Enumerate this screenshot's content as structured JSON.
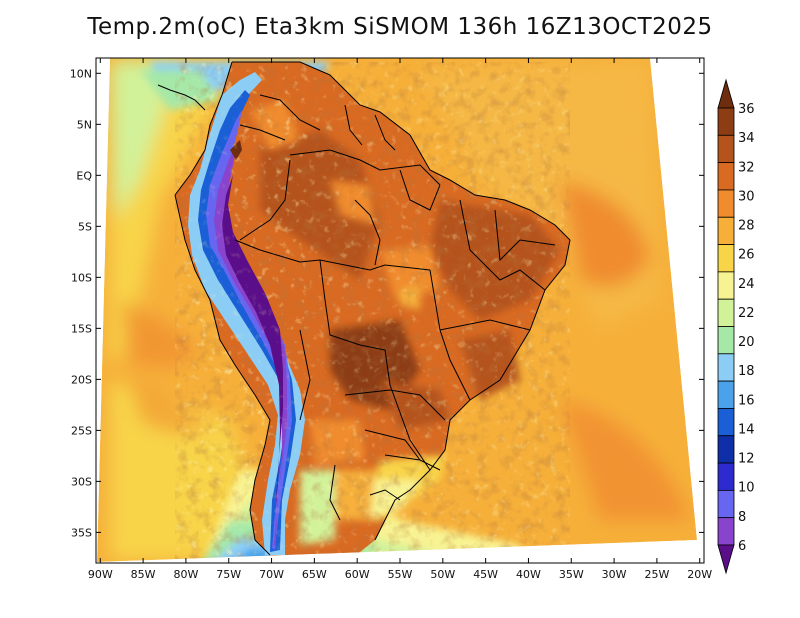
{
  "title": "Temp.2m(oC) Eta3km SiSMOM 136h 16Z13OCT2025",
  "map": {
    "lon_labels": [
      "90W",
      "85W",
      "80W",
      "75W",
      "70W",
      "65W",
      "60W",
      "55W",
      "50W",
      "45W",
      "40W",
      "35W",
      "30W",
      "25W",
      "20W"
    ],
    "lon_values": [
      -90,
      -85,
      -80,
      -75,
      -70,
      -65,
      -60,
      -55,
      -50,
      -45,
      -40,
      -35,
      -30,
      -25,
      -20
    ],
    "lat_labels": [
      "10N",
      "5N",
      "EQ",
      "5S",
      "10S",
      "15S",
      "20S",
      "25S",
      "30S",
      "35S"
    ],
    "lat_values": [
      10,
      5,
      0,
      -5,
      -10,
      -15,
      -20,
      -25,
      -30,
      -35
    ],
    "lon_range": [
      -90.5,
      -19.5
    ],
    "lat_range": [
      -38,
      11.5
    ]
  },
  "colorbar": {
    "labels": [
      "36",
      "34",
      "32",
      "30",
      "28",
      "26",
      "24",
      "22",
      "20",
      "18",
      "16",
      "14",
      "12",
      "10",
      "8",
      "6"
    ],
    "colors": [
      "#6e2d0f",
      "#8c3d14",
      "#b5531d",
      "#d96a22",
      "#f08c2e",
      "#f6b03a",
      "#f8d448",
      "#f8f392",
      "#d2f29a",
      "#a5e8a8",
      "#8ccdf5",
      "#4aa3ea",
      "#1a5fd6",
      "#0e2fa8",
      "#2d2bd0",
      "#6666f0",
      "#8844cc",
      "#5b0e8a"
    ]
  }
}
